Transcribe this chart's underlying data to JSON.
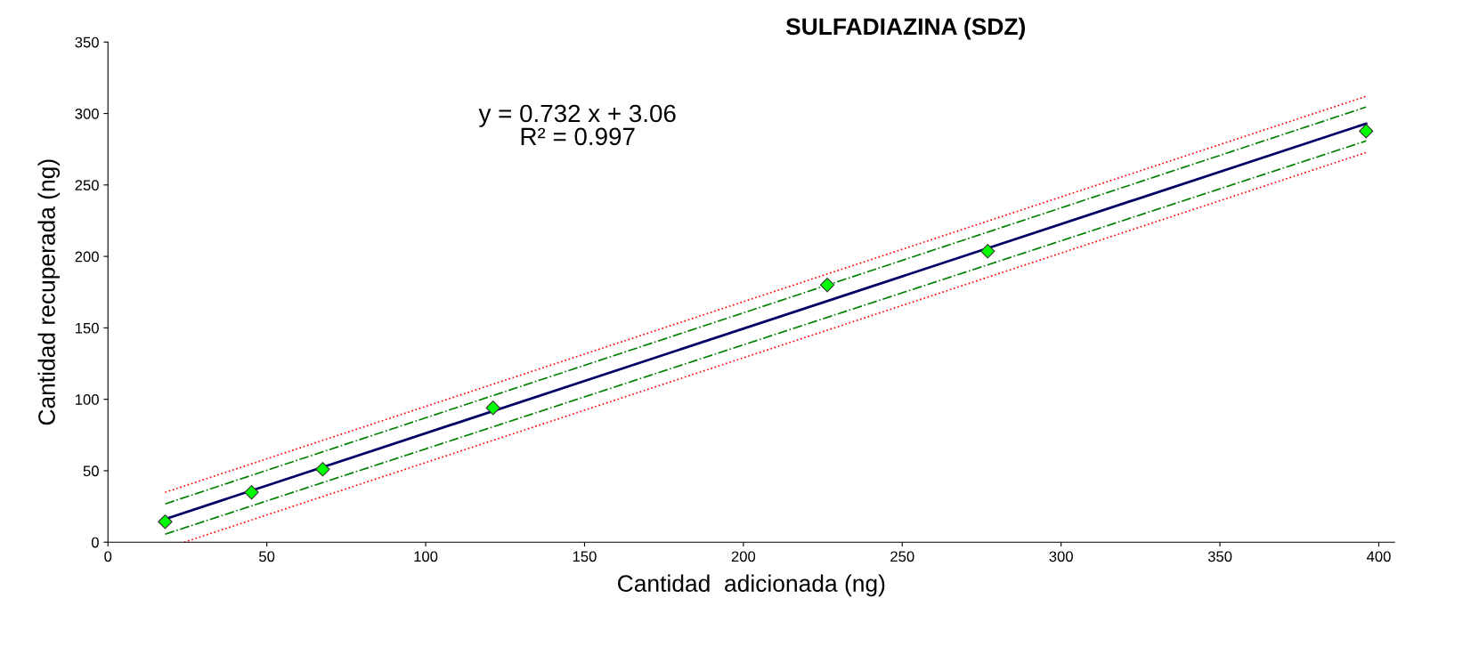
{
  "chart_data": {
    "type": "scatter",
    "title": "SULFADIAZINA (SDZ)",
    "xlabel": "Cantidad  adicionada (ng)",
    "ylabel": "Cantidad recuperada (ng)",
    "annotations": [
      "y = 0.732 x + 3.06\nR² = 0.997"
    ],
    "xlim": [
      0,
      405
    ],
    "xticks": [
      0,
      50,
      100,
      150,
      200,
      250,
      300,
      350,
      400
    ],
    "ylim": [
      0,
      350
    ],
    "yticks": [
      0,
      50,
      100,
      150,
      200,
      250,
      300,
      350
    ],
    "grid": false,
    "legend": false,
    "series": [
      {
        "type": "line",
        "color": "#ff0000",
        "line_style": "dotted",
        "marker": "none",
        "x": [
          18,
          396
        ],
        "values": [
          34.9,
          312
        ]
      },
      {
        "type": "line",
        "color": "#ff0000",
        "line_style": "dotted",
        "marker": "none",
        "x": [
          24,
          396
        ],
        "values": [
          0,
          272.7
        ]
      },
      {
        "type": "line",
        "color": "#008000",
        "line_style": "dashdot",
        "marker": "none",
        "x": [
          18,
          396
        ],
        "values": [
          26.8,
          304.5
        ]
      },
      {
        "type": "line",
        "color": "#008000",
        "line_style": "dashdot",
        "marker": "none",
        "x": [
          18,
          396
        ],
        "values": [
          5.6,
          280.8
        ]
      },
      {
        "type": "line",
        "color": "#000066",
        "line_style": "solid",
        "marker": "none",
        "x": [
          18,
          396
        ],
        "values": [
          16.2,
          292.9
        ]
      },
      {
        "color": "#00ff00",
        "marker": "diamond",
        "x": [
          18,
          45.2,
          67.6,
          121.2,
          226.4,
          276.9,
          396
        ],
        "values": [
          14.3,
          34.9,
          51,
          94,
          180,
          203.6,
          287.7
        ]
      }
    ]
  }
}
